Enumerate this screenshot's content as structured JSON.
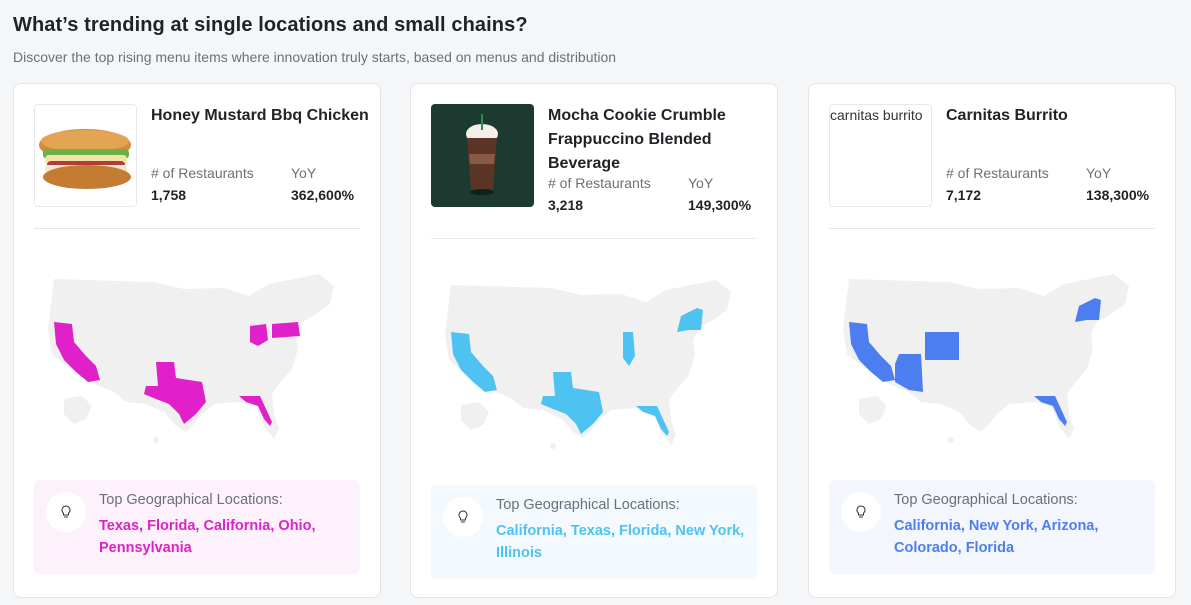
{
  "header": {
    "title": "What’s trending at single locations and small chains?",
    "subtitle": "Discover the top rising menu items where innovation truly starts, based on menus and distribution"
  },
  "labels": {
    "restaurants": "# of Restaurants",
    "yoy": "YoY",
    "top_geo": "Top Geographical Locations:"
  },
  "cards": [
    {
      "name": "Honey Mustard Bbq Chicken",
      "restaurants": "1,758",
      "yoy": "362,600%",
      "locations": "Texas, Florida, California, Ohio, Pennsylvania",
      "accent": "#e020c8",
      "geo_bg": "#fdf1fb",
      "image_icon": "sandwich-image"
    },
    {
      "name": "Mocha Cookie Crumble Frappuccino Blended Beverage",
      "restaurants": "3,218",
      "yoy": "149,300%",
      "locations": "California, Texas, Florida, New York, Illinois",
      "accent": "#4ec3f2",
      "geo_bg": "#f3f9fd",
      "image_icon": "frappuccino-image"
    },
    {
      "name": "Carnitas Burrito",
      "restaurants": "7,172",
      "yoy": "138,300%",
      "locations": "California, New York, Arizona, Colorado, Florida",
      "accent": "#4d7ef0",
      "geo_bg": "#f3f6fd",
      "image_alt": "carnitas burrito",
      "image_icon": "broken-image"
    }
  ],
  "map_colors": {
    "base": "#f0f0f1"
  }
}
